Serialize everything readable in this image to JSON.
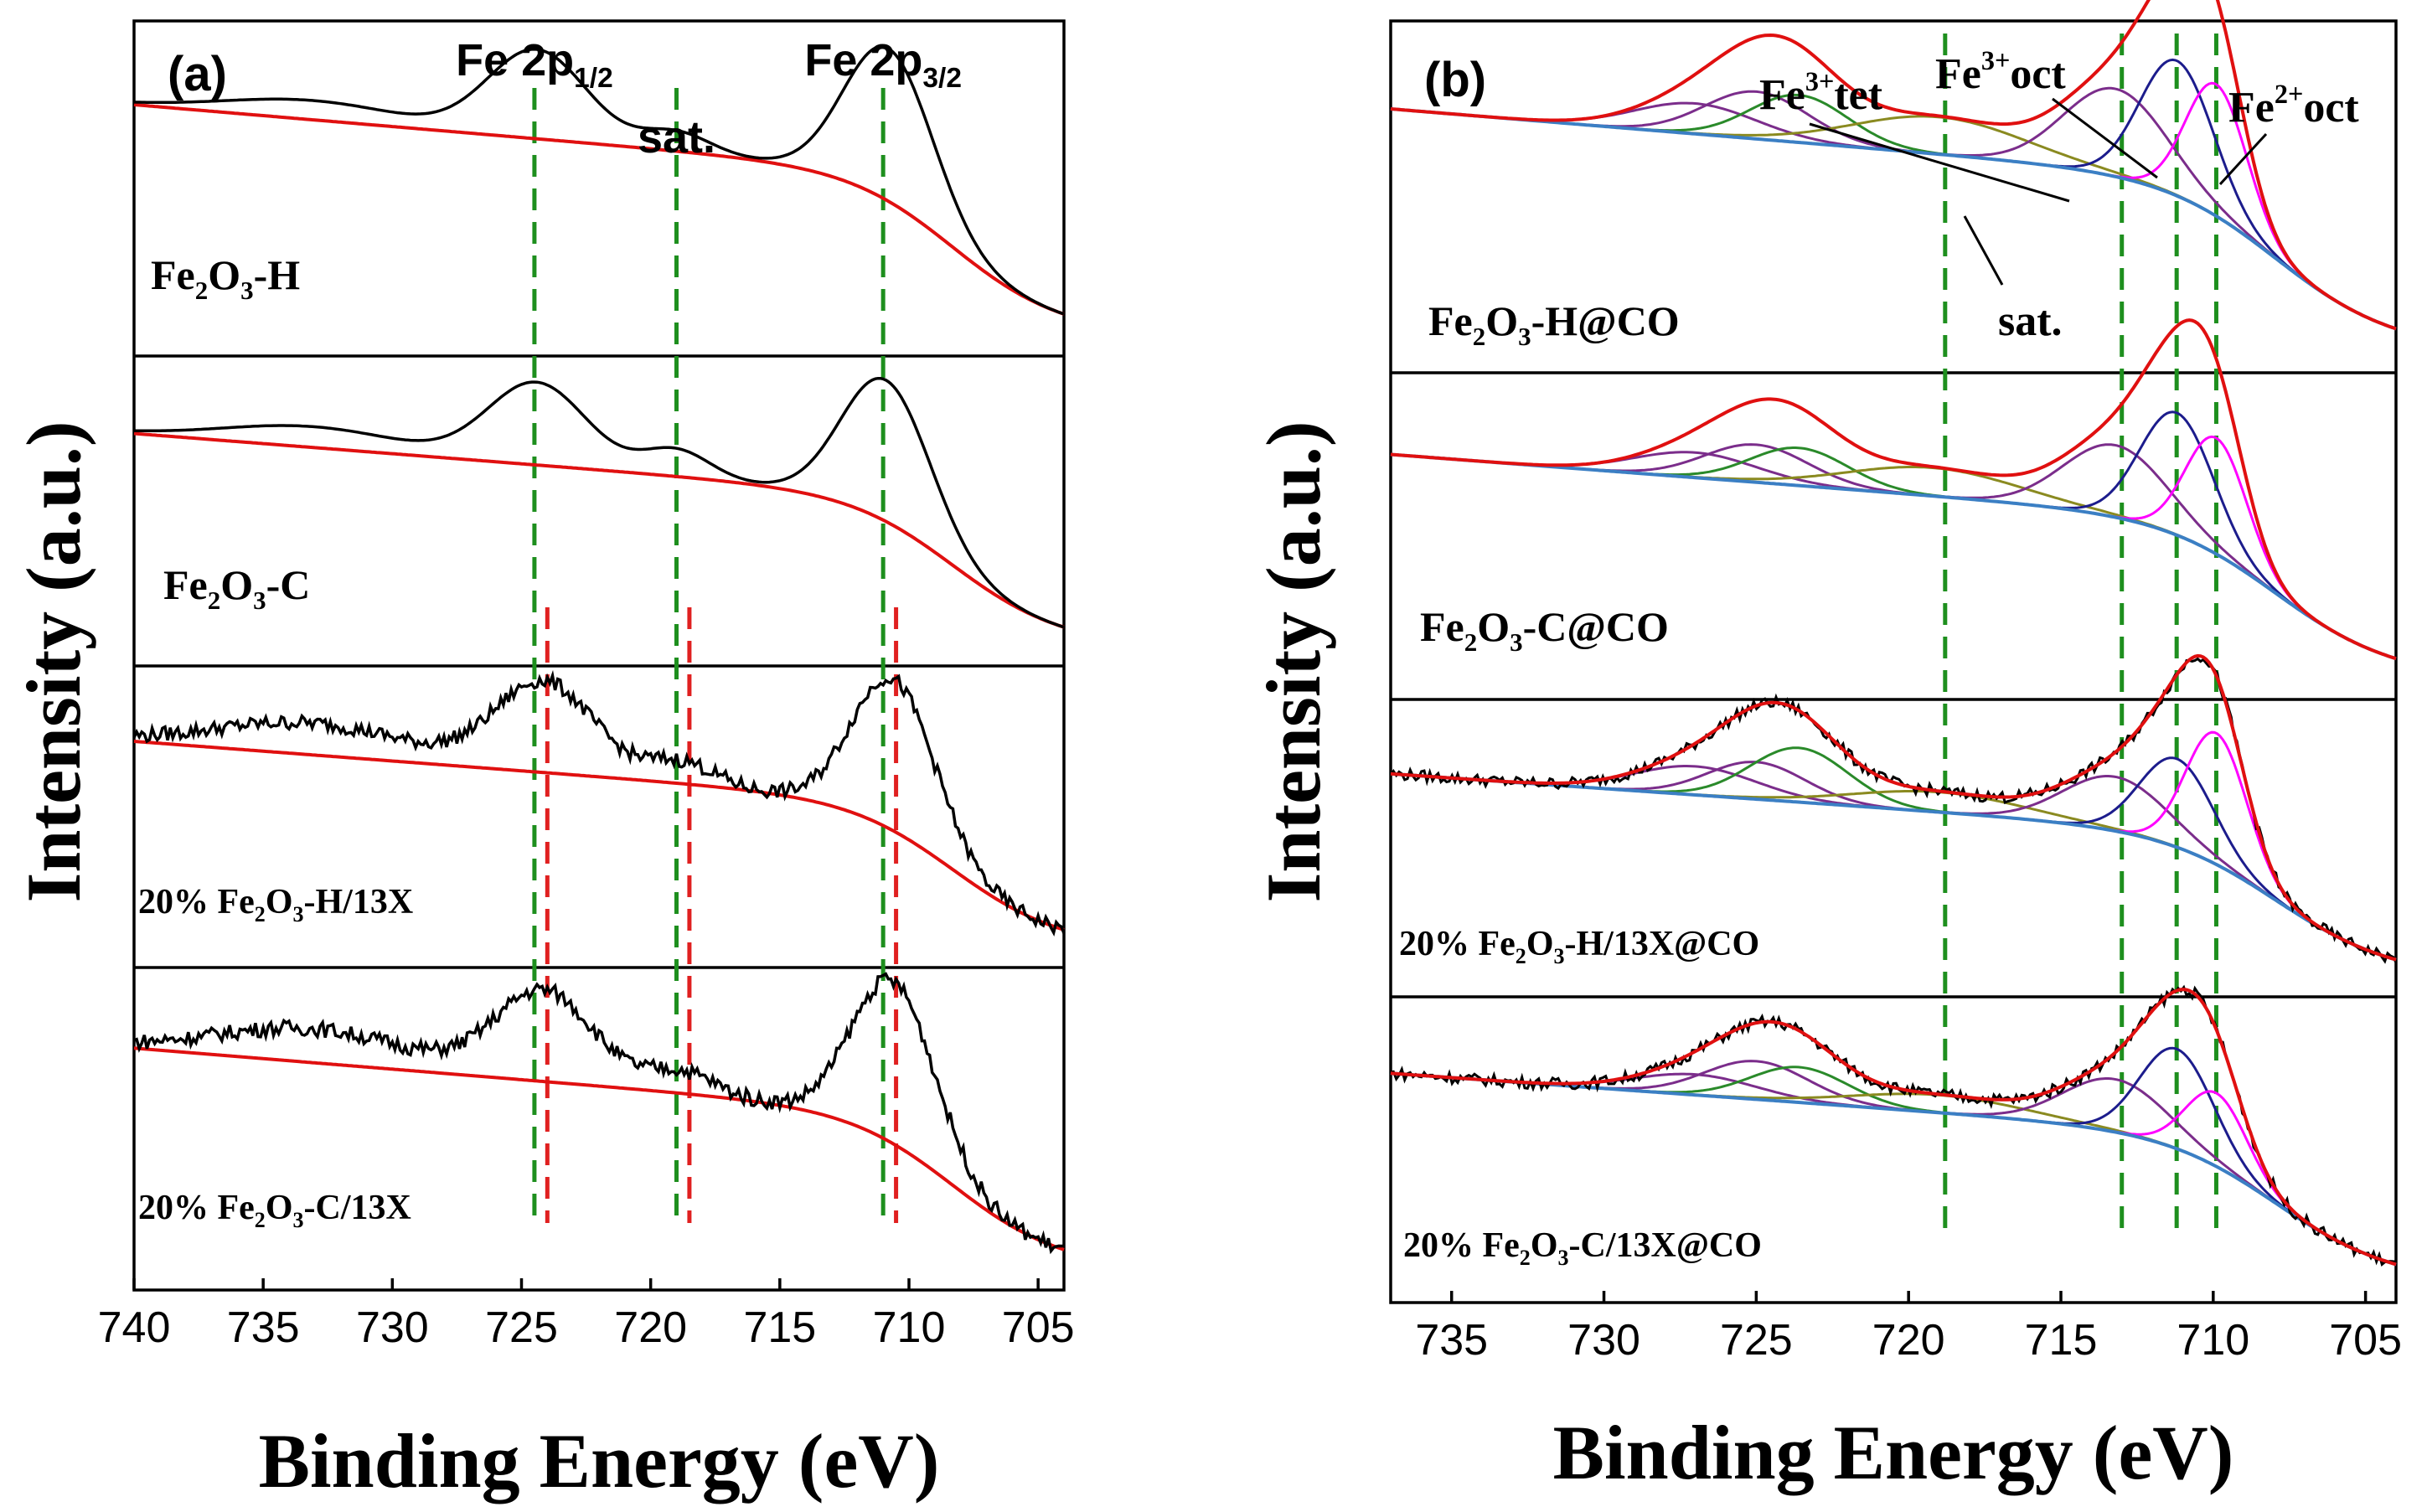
{
  "chart_data": [
    {
      "panel": "(a)",
      "type": "line",
      "xlabel": "Binding Energy (eV)",
      "ylabel": "Intensity (a.u.)",
      "xlim": [
        740,
        704
      ],
      "xticks": [
        740,
        735,
        730,
        725,
        720,
        715,
        710,
        705
      ],
      "peak_annotations": [
        {
          "label": "Fe 2p",
          "sub": "1/2",
          "x": 724.5
        },
        {
          "label": "sat.",
          "sub": "",
          "x": 719.0
        },
        {
          "label": "Fe 2p",
          "sub": "3/2",
          "x": 711.0
        }
      ],
      "green_lines": [
        724.5,
        719.0,
        711.0
      ],
      "red_lines": [
        724.0,
        718.5,
        710.5
      ],
      "stacks": [
        {
          "label": "Fe",
          "sub1": "2",
          "mid": "O",
          "sub2": "3",
          "rest": "-H",
          "noise": 0,
          "peaks": [
            {
              "c": 733.0,
              "h": 0.12,
              "w": 3.5
            },
            {
              "c": 724.4,
              "h": 0.55,
              "w": 1.9
            },
            {
              "c": 719.0,
              "h": 0.12,
              "w": 1.3
            },
            {
              "c": 710.8,
              "h": 0.95,
              "w": 1.7
            }
          ]
        },
        {
          "label": "Fe",
          "sub1": "2",
          "mid": "O",
          "sub2": "3",
          "rest": "-C",
          "noise": 0,
          "peaks": [
            {
              "c": 733.0,
              "h": 0.14,
              "w": 3.5
            },
            {
              "c": 724.4,
              "h": 0.55,
              "w": 1.9
            },
            {
              "c": 719.0,
              "h": 0.18,
              "w": 1.3
            },
            {
              "c": 710.9,
              "h": 0.95,
              "w": 1.7
            }
          ]
        },
        {
          "label": "20% Fe",
          "sub1": "2",
          "mid": "O",
          "sub2": "3",
          "rest": "-H/13X",
          "noise": 0.05,
          "peaks": [
            {
              "c": 733.0,
              "h": 0.22,
              "w": 3.8
            },
            {
              "c": 724.1,
              "h": 0.62,
              "w": 1.9
            },
            {
              "c": 718.8,
              "h": 0.15,
              "w": 1.3
            },
            {
              "c": 710.6,
              "h": 1.05,
              "w": 1.6
            }
          ]
        },
        {
          "label": "20% Fe",
          "sub1": "2",
          "mid": "O",
          "sub2": "3",
          "rest": "-C/13X",
          "noise": 0.05,
          "peaks": [
            {
              "c": 733.0,
              "h": 0.22,
              "w": 3.8
            },
            {
              "c": 724.1,
              "h": 0.58,
              "w": 1.9
            },
            {
              "c": 718.8,
              "h": 0.14,
              "w": 1.3
            },
            {
              "c": 710.6,
              "h": 1.05,
              "w": 1.6
            }
          ]
        }
      ]
    },
    {
      "panel": "(b)",
      "type": "line",
      "xlabel": "Binding Energy (eV)",
      "ylabel": "Intensity (a.u.)",
      "xlim": [
        737,
        704
      ],
      "xticks": [
        735,
        730,
        725,
        720,
        715,
        710,
        705
      ],
      "peak_annotations": [
        {
          "label": "Fe",
          "sup": "3+",
          "rest": "tet"
        },
        {
          "label": "Fe",
          "sup": "3+",
          "rest": "oct"
        },
        {
          "label": "Fe",
          "sup": "2+",
          "rest": "oct"
        },
        {
          "label": "sat.",
          "sup": "",
          "rest": ""
        }
      ],
      "green_lines": [
        718.8,
        713.0,
        711.2,
        709.9
      ],
      "component_colors": [
        "#7b2d8b",
        "#7b2d8b",
        "#2a8a2a",
        "#8a8a20",
        "#7b2d8b",
        "#1c1c8c",
        "#ff00ff"
      ],
      "stacks": [
        {
          "label": "Fe",
          "sub1": "2",
          "mid": "O",
          "sub2": "3",
          "rest": "-H@CO",
          "noise": 0,
          "comps": [
            {
              "c": 727.0,
              "h": 0.18,
              "w": 2.0
            },
            {
              "c": 725.0,
              "h": 0.28,
              "w": 1.7
            },
            {
              "c": 723.6,
              "h": 0.28,
              "w": 1.6
            },
            {
              "c": 719.0,
              "h": 0.22,
              "w": 2.8
            },
            {
              "c": 713.2,
              "h": 0.52,
              "w": 1.7
            },
            {
              "c": 711.2,
              "h": 0.8,
              "w": 1.2
            },
            {
              "c": 709.9,
              "h": 0.78,
              "w": 1.0
            }
          ]
        },
        {
          "label": "Fe",
          "sub1": "2",
          "mid": "O",
          "sub2": "3",
          "rest": "-C@CO",
          "noise": 0,
          "comps": [
            {
              "c": 727.0,
              "h": 0.16,
              "w": 2.0
            },
            {
              "c": 725.0,
              "h": 0.24,
              "w": 1.7
            },
            {
              "c": 723.6,
              "h": 0.24,
              "w": 1.6
            },
            {
              "c": 719.2,
              "h": 0.18,
              "w": 2.8
            },
            {
              "c": 713.2,
              "h": 0.46,
              "w": 1.7
            },
            {
              "c": 711.2,
              "h": 0.78,
              "w": 1.2
            },
            {
              "c": 709.9,
              "h": 0.74,
              "w": 1.0
            }
          ]
        },
        {
          "label": "20% Fe",
          "sub1": "2",
          "mid": "O",
          "sub2": "3",
          "rest": "-H/13X@CO",
          "noise": 0.04,
          "comps": [
            {
              "c": 727.0,
              "h": 0.2,
              "w": 2.0
            },
            {
              "c": 725.0,
              "h": 0.26,
              "w": 1.6
            },
            {
              "c": 723.6,
              "h": 0.38,
              "w": 1.6
            },
            {
              "c": 719.0,
              "h": 0.14,
              "w": 2.8
            },
            {
              "c": 713.2,
              "h": 0.38,
              "w": 1.7
            },
            {
              "c": 711.2,
              "h": 0.62,
              "w": 1.2
            },
            {
              "c": 709.9,
              "h": 0.92,
              "w": 1.0
            }
          ]
        },
        {
          "label": "20% Fe",
          "sub1": "2",
          "mid": "O",
          "sub2": "3",
          "rest": "-C/13X@CO",
          "noise": 0.04,
          "comps": [
            {
              "c": 727.0,
              "h": 0.14,
              "w": 2.0
            },
            {
              "c": 725.0,
              "h": 0.26,
              "w": 1.7
            },
            {
              "c": 723.6,
              "h": 0.24,
              "w": 1.6
            },
            {
              "c": 719.0,
              "h": 0.12,
              "w": 2.8
            },
            {
              "c": 713.2,
              "h": 0.36,
              "w": 1.7
            },
            {
              "c": 711.2,
              "h": 0.68,
              "w": 1.2
            },
            {
              "c": 709.9,
              "h": 0.5,
              "w": 1.0
            }
          ]
        }
      ]
    }
  ]
}
